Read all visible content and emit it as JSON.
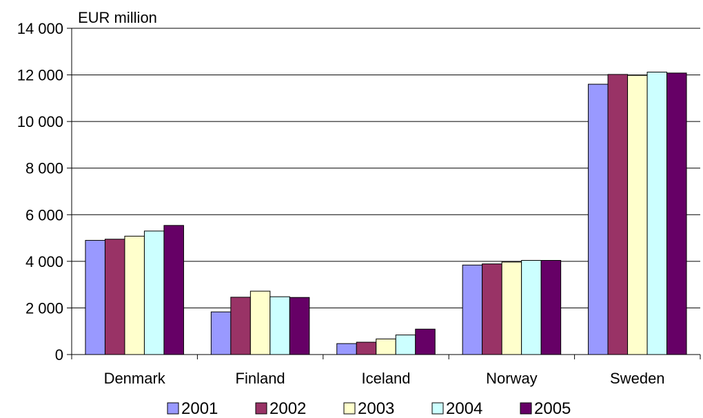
{
  "chart_data": {
    "type": "bar",
    "title": "",
    "y_unit_label": "EUR million",
    "xlabel": "",
    "ylabel": "",
    "ylim": [
      0,
      14000
    ],
    "y_ticks": [
      0,
      2000,
      4000,
      6000,
      8000,
      10000,
      12000,
      14000
    ],
    "y_tick_labels": [
      "0",
      "2 000",
      "4 000",
      "6 000",
      "8 000",
      "10 000",
      "12 000",
      "14 000"
    ],
    "grid": true,
    "legend_position": "bottom",
    "categories": [
      "Denmark",
      "Finland",
      "Iceland",
      "Norway",
      "Sweden"
    ],
    "series": [
      {
        "name": "2001",
        "color": "#9999ff",
        "values": [
          4900,
          1830,
          470,
          3840,
          11600
        ]
      },
      {
        "name": "2002",
        "color": "#993366",
        "values": [
          4950,
          2460,
          530,
          3890,
          12020
        ]
      },
      {
        "name": "2003",
        "color": "#ffffcc",
        "values": [
          5080,
          2720,
          670,
          3970,
          11980
        ]
      },
      {
        "name": "2004",
        "color": "#ccffff",
        "values": [
          5300,
          2480,
          840,
          4040,
          12120
        ]
      },
      {
        "name": "2005",
        "color": "#660066",
        "values": [
          5540,
          2450,
          1090,
          4040,
          12080
        ]
      }
    ]
  }
}
